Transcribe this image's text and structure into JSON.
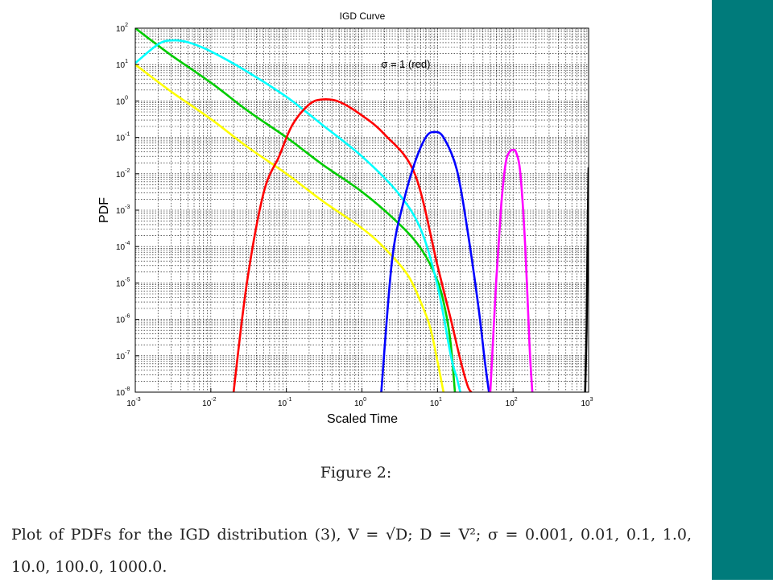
{
  "colors": {
    "side_panel": "#007b7b",
    "background": "#ffffff"
  },
  "chart_data": {
    "type": "line",
    "title": "IGD Curve",
    "xlabel": "Scaled Time",
    "ylabel": "PDF",
    "xscale": "log",
    "yscale": "log",
    "xlim": [
      0.001,
      1000
    ],
    "ylim": [
      1e-08,
      100
    ],
    "grid": true,
    "x_ticks": [
      {
        "value": 0.001,
        "base": "10",
        "exp": "-3"
      },
      {
        "value": 0.01,
        "base": "10",
        "exp": "-2"
      },
      {
        "value": 0.1,
        "base": "10",
        "exp": "-1"
      },
      {
        "value": 1,
        "base": "10",
        "exp": "0"
      },
      {
        "value": 10,
        "base": "10",
        "exp": "1"
      },
      {
        "value": 100,
        "base": "10",
        "exp": "2"
      },
      {
        "value": 1000,
        "base": "10",
        "exp": "3"
      }
    ],
    "y_ticks": [
      {
        "value": 100,
        "base": "10",
        "exp": "2"
      },
      {
        "value": 10,
        "base": "10",
        "exp": "1"
      },
      {
        "value": 1,
        "base": "10",
        "exp": "0"
      },
      {
        "value": 0.1,
        "base": "10",
        "exp": "-1"
      },
      {
        "value": 0.01,
        "base": "10",
        "exp": "-2"
      },
      {
        "value": 0.001,
        "base": "10",
        "exp": "-3"
      },
      {
        "value": 0.0001,
        "base": "10",
        "exp": "-4"
      },
      {
        "value": 1e-05,
        "base": "10",
        "exp": "-5"
      },
      {
        "value": 1e-06,
        "base": "10",
        "exp": "-6"
      },
      {
        "value": 1e-07,
        "base": "10",
        "exp": "-7"
      },
      {
        "value": 1e-08,
        "base": "10",
        "exp": "-8"
      }
    ],
    "annotations": [
      {
        "text": "σ = 1 (red)",
        "x": 10,
        "y": 10
      }
    ],
    "series": [
      {
        "color": "#ffff00",
        "x": [
          0.001,
          0.003,
          0.01,
          0.03,
          0.1,
          0.3,
          1,
          2,
          4,
          6,
          8,
          10,
          12
        ],
        "y": [
          10,
          1.8,
          0.32,
          0.056,
          0.01,
          0.0018,
          0.00032,
          9e-05,
          1.7e-05,
          3e-06,
          6e-07,
          7e-08,
          1e-08
        ]
      },
      {
        "color": "#00cc00",
        "x": [
          0.001,
          0.003,
          0.01,
          0.03,
          0.1,
          0.3,
          1,
          3,
          6,
          10,
          13,
          15,
          17
        ],
        "y": [
          100,
          18,
          3.2,
          0.56,
          0.1,
          0.018,
          0.0032,
          0.00045,
          9e-05,
          1.15e-05,
          1.4e-06,
          2e-07,
          1e-08
        ]
      },
      {
        "color": "#00ffff",
        "x": [
          0.001,
          0.002,
          0.003,
          0.005,
          0.01,
          0.03,
          0.1,
          0.3,
          1,
          3,
          6,
          10,
          15,
          18,
          20
        ],
        "y": [
          11,
          36,
          46,
          41,
          23,
          6.5,
          1.3,
          0.22,
          0.03,
          0.003,
          0.0003,
          8.5e-06,
          1e-07,
          2.5e-08,
          1e-08
        ]
      },
      {
        "color": "#ff0000",
        "x": [
          0.02,
          0.03,
          0.05,
          0.08,
          0.12,
          0.2,
          0.3,
          0.5,
          1,
          2,
          5,
          10,
          15,
          20,
          25,
          28
        ],
        "y": [
          1e-08,
          1e-05,
          0.003,
          0.03,
          0.22,
          0.8,
          1.1,
          0.95,
          0.4,
          0.12,
          0.01,
          3e-05,
          1e-06,
          8e-08,
          1.5e-08,
          1e-08
        ]
      },
      {
        "color": "#0000ff",
        "x": [
          1.8,
          2.5,
          3.5,
          5,
          7,
          9,
          12,
          18,
          25,
          35,
          42,
          48
        ],
        "y": [
          1e-08,
          4e-05,
          0.0015,
          0.02,
          0.1,
          0.14,
          0.1,
          0.013,
          0.00027,
          2e-06,
          8e-08,
          1e-08
        ]
      },
      {
        "color": "#ff00ff",
        "x": [
          50,
          60,
          70,
          80,
          90,
          100,
          110,
          125,
          145,
          165,
          180
        ],
        "y": [
          1e-08,
          1.2e-05,
          0.0015,
          0.02,
          0.04,
          0.045,
          0.038,
          0.01,
          0.0001,
          2e-07,
          1e-08
        ]
      },
      {
        "color": "#000000",
        "x": [
          900,
          940,
          975,
          1000
        ],
        "y": [
          1e-08,
          5e-07,
          0.0004,
          0.015
        ]
      }
    ]
  },
  "caption": {
    "figure_label": "Figure 2:",
    "text": "Plot of PDFs for the IGD distribution (3), V = √D; D = V²; σ = 0.001, 0.01, 0.1, 1.0, 10.0, 100.0, 1000.0."
  }
}
